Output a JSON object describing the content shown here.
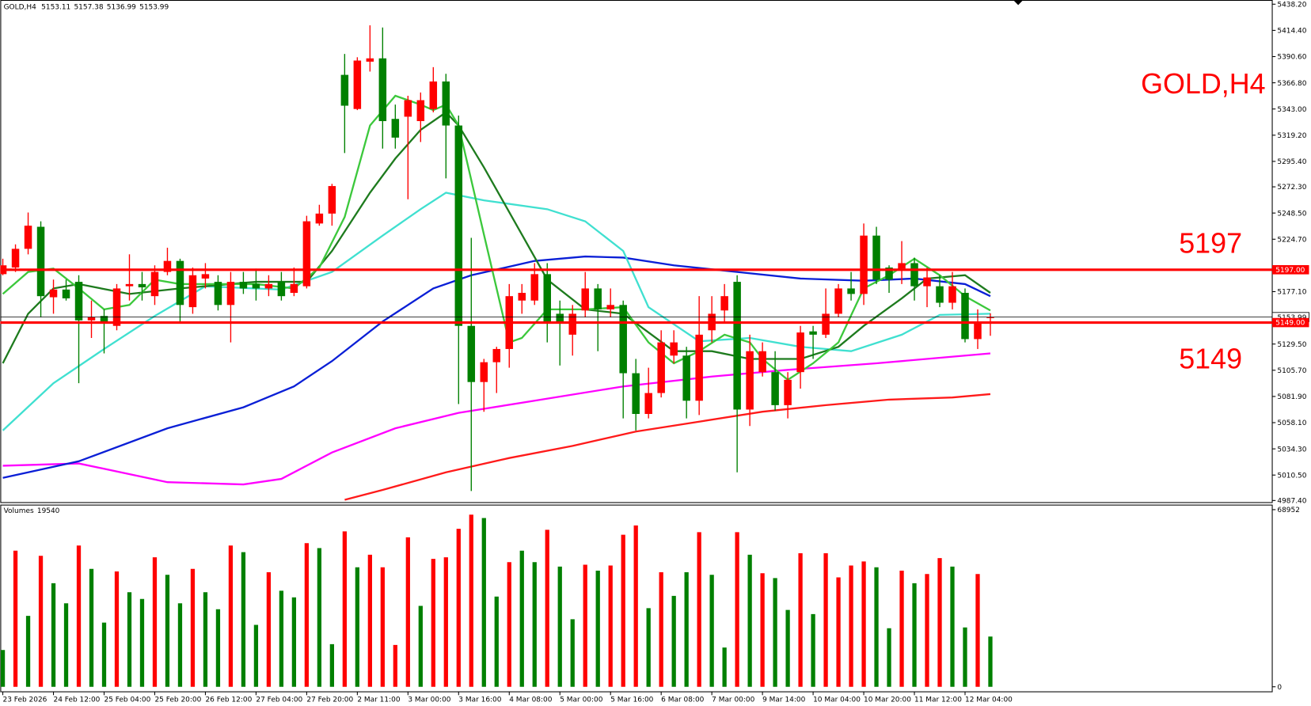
{
  "chart_data": {
    "type": "candlestick",
    "symbol": "GOLD,H4",
    "categories": [
      "23 Feb 2026",
      null,
      null,
      null,
      "24 Feb 12:00",
      null,
      null,
      null,
      "25 Feb 04:00",
      null,
      null,
      null,
      "25 Feb 20:00",
      null,
      null,
      null,
      "26 Feb 12:00",
      null,
      null,
      null,
      "27 Feb 04:00",
      null,
      null,
      null,
      "27 Feb 20:00",
      null,
      null,
      null,
      "2 Mar 11:00",
      null,
      null,
      null,
      "3 Mar 00:00",
      null,
      null,
      null,
      "3 Mar 16:00",
      null,
      null,
      null,
      "4 Mar 08:00",
      null,
      null,
      null,
      "5 Mar 00:00",
      null,
      null,
      null,
      "5 Mar 16:00",
      null,
      null,
      null,
      "6 Mar 08:00",
      null,
      null,
      null,
      "7 Mar 00:00",
      null,
      null,
      null,
      "9 Mar 14:00",
      null,
      null,
      null,
      "10 Mar 04:00",
      null,
      null,
      null,
      "10 Mar 20:00",
      null,
      null,
      null,
      "11 Mar 12:00",
      null,
      null,
      null,
      "12 Mar 04:00",
      null,
      null
    ],
    "open": [
      5193,
      5199,
      5216,
      5236,
      5172,
      5179,
      5186,
      5151,
      5155,
      5146,
      5182,
      5184,
      5173,
      5195,
      5205,
      5163,
      5189,
      5186,
      5165,
      5186,
      5184,
      5180,
      5186,
      5176,
      5182,
      5239,
      5248,
      5374,
      5343,
      5386,
      5389,
      5334,
      5336,
      5332,
      5343,
      5368,
      5328,
      5146,
      5095,
      5113,
      5125,
      5169,
      5169,
      5193,
      5157,
      5138,
      5160,
      5180,
      5161,
      5165,
      5103,
      5066,
      5085,
      5119,
      5119,
      5078,
      5142,
      5160,
      5186,
      5070,
      5104,
      5104,
      5074,
      5104,
      5141,
      5138,
      5157,
      5180,
      5175,
      5228,
      5199,
      5198,
      5203,
      5182,
      5182,
      5167,
      5176,
      5134,
      5153.11
    ],
    "high": [
      5207,
      5220,
      5249,
      5241,
      5188,
      5188,
      5192,
      5169,
      5161,
      5184,
      5211,
      5195,
      5201,
      5217,
      5207,
      5199,
      5203,
      5192,
      5195,
      5195,
      5198,
      5192,
      5195,
      5199,
      5246,
      5256,
      5275,
      5393,
      5390,
      5419,
      5417,
      5347,
      5355,
      5358,
      5381,
      5375,
      5337,
      5226,
      5116,
      5127,
      5184,
      5184,
      5203,
      5203,
      5169,
      5165,
      5195,
      5184,
      5180,
      5169,
      5116,
      5108,
      5142,
      5142,
      5127,
      5173,
      5173,
      5184,
      5192,
      5138,
      5131,
      5123,
      5104,
      5146,
      5146,
      5180,
      5184,
      5195,
      5239,
      5236,
      5201,
      5223,
      5208,
      5199,
      5192,
      5195,
      5180,
      5161,
      5157.38
    ],
    "low": [
      5192,
      5195,
      5211,
      5154,
      5157,
      5169,
      5094,
      5135,
      5121,
      5142,
      5169,
      5169,
      5165,
      5192,
      5148,
      5157,
      5180,
      5160,
      5131,
      5175,
      5169,
      5173,
      5169,
      5173,
      5180,
      5237,
      5237,
      5303,
      5342,
      5377,
      5307,
      5307,
      5261,
      5313,
      5340,
      5280,
      5075,
      4996,
      5068,
      5085,
      5108,
      5157,
      5165,
      5131,
      5110,
      5119,
      5154,
      5123,
      5154,
      5062,
      5051,
      5062,
      5081,
      5112,
      5062,
      5065,
      5131,
      5150,
      5013,
      5055,
      5100,
      5069,
      5062,
      5089,
      5116,
      5135,
      5154,
      5169,
      5165,
      5184,
      5176,
      5184,
      5169,
      5163,
      5163,
      5161,
      5131,
      5125,
      5136.99
    ],
    "close": [
      5201,
      5216,
      5237,
      5173,
      5179,
      5171,
      5151,
      5154,
      5148,
      5180,
      5184,
      5181,
      5195,
      5205,
      5165,
      5192,
      5193,
      5165,
      5186,
      5180,
      5180,
      5184,
      5173,
      5184,
      5241,
      5248,
      5273,
      5346,
      5387,
      5389,
      5332,
      5317,
      5351,
      5351,
      5368,
      5328,
      5146,
      5095,
      5113,
      5125,
      5173,
      5176,
      5193,
      5150,
      5150,
      5157,
      5180,
      5161,
      5165,
      5103,
      5066,
      5085,
      5131,
      5131,
      5078,
      5138,
      5157,
      5173,
      5070,
      5123,
      5123,
      5074,
      5097,
      5140,
      5138,
      5157,
      5180,
      5175,
      5228,
      5188,
      5188,
      5203,
      5182,
      5190,
      5167,
      5182,
      5134,
      5150,
      5153.99
    ],
    "up_color": "#ff0000",
    "down_color": "#008000",
    "ylim": [
      4985.9,
      5442
    ],
    "yticks": [
      {
        "value": 5438.2,
        "label": "5438.20"
      },
      {
        "value": 5414.4,
        "label": "5414.40"
      },
      {
        "value": 5390.6,
        "label": "5390.60"
      },
      {
        "value": 5366.8,
        "label": "5366.80"
      },
      {
        "value": 5343,
        "label": "5343.00"
      },
      {
        "value": 5319.2,
        "label": "5319.20"
      },
      {
        "value": 5295.4,
        "label": "5295.40"
      },
      {
        "value": 5272.3,
        "label": "5272.30"
      },
      {
        "value": 5248.5,
        "label": "5248.50"
      },
      {
        "value": 5224.7,
        "label": "5224.70"
      },
      {
        "value": 5177.1,
        "label": "5177.10"
      },
      {
        "value": 5129.5,
        "label": "5129.50"
      },
      {
        "value": 5105.7,
        "label": "5105.70"
      },
      {
        "value": 5081.9,
        "label": "5081.90"
      },
      {
        "value": 5058.1,
        "label": "5058.10"
      },
      {
        "value": 5034.3,
        "label": "5034.30"
      },
      {
        "value": 5010.5,
        "label": "5010.50"
      },
      {
        "value": 4987.4,
        "label": "4987.40"
      }
    ],
    "lines": [
      {
        "color": "#ff1a1a",
        "x": [
          27,
          30,
          35,
          40,
          45,
          50,
          55,
          60,
          65,
          70,
          75,
          78
        ],
        "values": [
          4988,
          4997,
          5013,
          5026,
          5037,
          5050,
          5059,
          5068,
          5074,
          5079,
          5081,
          5084
        ]
      },
      {
        "color": "#ff00ff",
        "x": [
          0,
          6,
          13,
          19,
          22,
          26,
          31,
          36,
          42,
          49,
          56,
          62,
          69,
          78
        ],
        "values": [
          5019,
          5021,
          5004,
          5002,
          5007,
          5031,
          5053,
          5067,
          5078,
          5091,
          5100,
          5106,
          5112,
          5121
        ]
      },
      {
        "color": "#0a1fd6",
        "x": [
          0,
          6,
          13,
          19,
          23,
          26,
          30,
          34,
          37,
          42,
          46,
          49,
          53,
          58,
          63,
          68,
          72,
          76,
          78
        ],
        "values": [
          5008,
          5023,
          5053,
          5072,
          5091,
          5114,
          5150,
          5180,
          5192,
          5205,
          5209,
          5208,
          5201,
          5195,
          5189,
          5187,
          5189,
          5184,
          5173
        ]
      },
      {
        "color": "#40e0d0",
        "x": [
          0,
          4,
          8,
          12,
          16,
          22,
          26,
          30,
          33,
          35,
          38,
          43,
          46,
          49,
          51,
          55,
          59,
          63,
          67,
          71,
          74,
          78
        ],
        "values": [
          5051,
          5094,
          5125,
          5155,
          5182,
          5179,
          5195,
          5228,
          5252,
          5267,
          5260,
          5252,
          5241,
          5214,
          5163,
          5132,
          5135,
          5127,
          5123,
          5138,
          5156,
          5157
        ]
      },
      {
        "color": "#1e7b1e",
        "x": [
          0,
          2,
          4,
          6,
          10,
          14,
          20,
          24,
          26,
          29,
          31,
          33,
          35,
          36,
          38,
          41,
          43,
          46,
          49,
          53,
          56,
          59,
          63,
          66,
          68,
          71,
          73,
          76,
          78
        ],
        "values": [
          5112,
          5157,
          5180,
          5184,
          5175,
          5180,
          5186,
          5186,
          5214,
          5267,
          5298,
          5324,
          5340,
          5328,
          5290,
          5229,
          5188,
          5161,
          5157,
          5123,
          5123,
          5116,
          5116,
          5127,
          5146,
          5171,
          5189,
          5192,
          5176
        ]
      },
      {
        "color": "#3cc83c",
        "x": [
          0,
          2,
          4,
          6,
          8,
          10,
          12,
          14,
          17,
          20,
          23,
          25,
          27,
          29,
          31,
          33,
          34,
          35,
          36,
          38,
          40,
          41,
          43,
          46,
          49,
          51,
          53,
          55,
          57,
          59,
          60,
          62,
          64,
          66,
          68,
          70,
          72,
          74,
          76,
          78
        ],
        "values": [
          5175,
          5195,
          5198,
          5180,
          5161,
          5165,
          5188,
          5184,
          5184,
          5184,
          5180,
          5199,
          5245,
          5328,
          5355,
          5347,
          5342,
          5347,
          5328,
          5229,
          5131,
          5135,
          5161,
          5161,
          5163,
          5131,
          5112,
          5123,
          5138,
          5131,
          5116,
          5097,
          5112,
          5131,
          5180,
          5192,
          5207,
          5192,
          5173,
          5160
        ]
      }
    ],
    "levels": [
      {
        "value": 5197,
        "label": "5197.00",
        "text": "5197",
        "color": "#ff0000"
      },
      {
        "value": 5149,
        "label": "5149.00",
        "text": "5149",
        "color": "#ff0000"
      }
    ],
    "volume": {
      "title": "Volumes",
      "ylim": [
        0,
        68952
      ],
      "yticks": [
        68952,
        0
      ],
      "values": [
        14300,
        53000,
        27600,
        51000,
        40300,
        32500,
        55000,
        45900,
        25000,
        44900,
        36800,
        34200,
        50400,
        43600,
        32500,
        45900,
        36800,
        30200,
        55000,
        52400,
        24100,
        44600,
        37400,
        34800,
        55900,
        54000,
        16600,
        60500,
        46500,
        51400,
        46500,
        16300,
        58200,
        31500,
        49800,
        50400,
        61500,
        67000,
        65700,
        35100,
        48500,
        53000,
        48500,
        61100,
        46800,
        26300,
        47500,
        45200,
        47200,
        59200,
        62800,
        30600,
        44600,
        35400,
        44600,
        60200,
        43600,
        15300,
        60200,
        51400,
        44200,
        42300,
        29900,
        52000,
        28300,
        52000,
        42600,
        47200,
        48800,
        46500,
        22800,
        45200,
        40300,
        43900,
        50100,
        46800,
        23100,
        43900,
        19540
      ],
      "colors": [
        "green",
        "red",
        "green",
        "red",
        "green",
        "green",
        "red",
        "green",
        "green",
        "red",
        "green",
        "green",
        "red",
        "green",
        "green",
        "red",
        "green",
        "green",
        "red",
        "green",
        "green",
        "red",
        "green",
        "green",
        "red",
        "green",
        "green",
        "red",
        "green",
        "red",
        "red",
        "red",
        "red",
        "green",
        "red",
        "red",
        "red",
        "red",
        "green",
        "green",
        "red",
        "green",
        "green",
        "red",
        "green",
        "green",
        "red",
        "green",
        "red",
        "red",
        "red",
        "green",
        "red",
        "green",
        "green",
        "red",
        "green",
        "green",
        "red",
        "green",
        "red",
        "green",
        "green",
        "red",
        "green",
        "red",
        "red",
        "red",
        "red",
        "green",
        "green",
        "red",
        "green",
        "red",
        "red",
        "green",
        "green",
        "red",
        "green"
      ]
    }
  }
}
